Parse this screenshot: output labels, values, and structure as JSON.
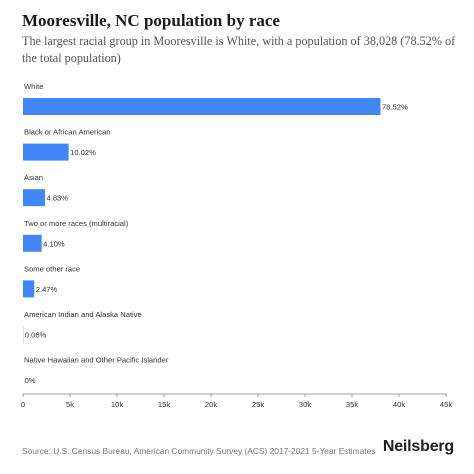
{
  "header": {
    "title": "Mooresville, NC population by race",
    "subtitle": "The largest racial group in Mooresville is White, with a population of 38,028 (78.52% of the total population)"
  },
  "chart_data": {
    "type": "bar",
    "orientation": "horizontal",
    "categories": [
      "White",
      "Black or African American",
      "Asian",
      "Two or more races (multiracial)",
      "Some other race",
      "American Indian and Alaska Native",
      "Native Hawaiian and Other Pacific Islander"
    ],
    "values": [
      38028,
      4853,
      2339,
      1986,
      1196,
      29,
      0
    ],
    "value_labels": [
      "78.52%",
      "10.02%",
      "4.83%",
      "4.10%",
      "2.47%",
      "0.06%",
      "0%"
    ],
    "x_ticks": [
      0,
      5000,
      10000,
      15000,
      20000,
      25000,
      30000,
      35000,
      40000,
      45000
    ],
    "x_tick_labels": [
      "0",
      "5k",
      "10k",
      "15k",
      "20k",
      "25k",
      "30k",
      "35k",
      "40k",
      "45k"
    ],
    "xlim": [
      0,
      45000
    ],
    "bar_color": "#4287f5",
    "grid": false
  },
  "footer": {
    "source": "Source: U.S. Census Bureau, American Community Survey (ACS) 2017-2021 5-Year Estimates",
    "brand": "Neilsberg"
  }
}
